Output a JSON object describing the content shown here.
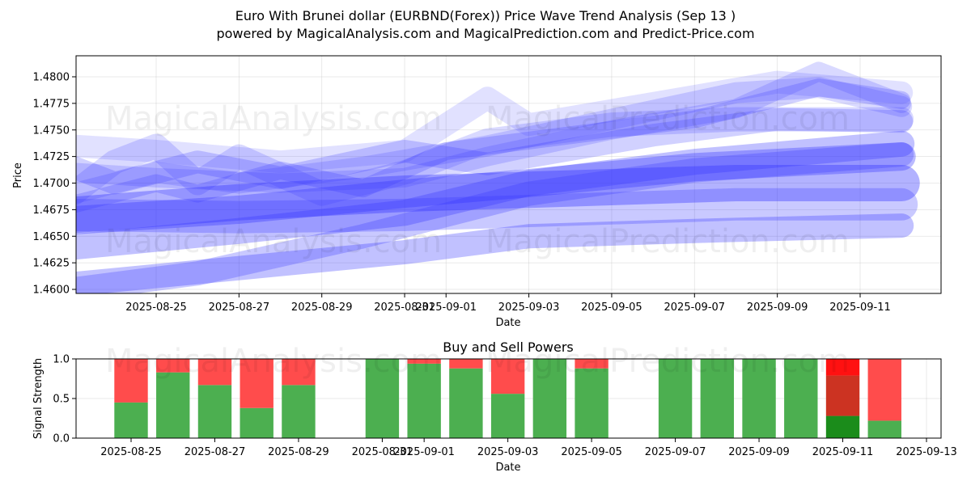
{
  "header": {
    "title_line1": "Euro With Brunei dollar (EURBND(Forex)) Price Wave Trend Analysis (Sep 13 )",
    "title_line2": "powered by MagicalAnalysis.com and MagicalPrediction.com and Predict-Price.com"
  },
  "watermarks": [
    "MagicalAnalysis.com",
    "MagicalPrediction.com"
  ],
  "colors": {
    "wave": "#3333ff",
    "buy": "#4caf50",
    "sell": "#ff4c4c",
    "buy_dark": "#1b8c1b",
    "sell_dark": "#cc3322",
    "sell_bright": "#ff1111"
  },
  "chart_data": [
    {
      "type": "area",
      "title": "",
      "xlabel": "Date",
      "ylabel": "Price",
      "ylim": [
        1.4597,
        1.482
      ],
      "xlim": [
        "2025-08-23",
        "2025-09-13"
      ],
      "x_ticks": [
        "2025-08-25",
        "2025-08-27",
        "2025-08-29",
        "2025-08-31",
        "2025-09-01",
        "2025-09-03",
        "2025-09-05",
        "2025-09-07",
        "2025-09-09",
        "2025-09-11"
      ],
      "y_ticks": [
        "1.4600",
        "1.4625",
        "1.4650",
        "1.4675",
        "1.4700",
        "1.4725",
        "1.4750",
        "1.4775",
        "1.4800"
      ],
      "grid": true,
      "series": [
        {
          "opacity": 0.4,
          "width": 30,
          "points": [
            [
              "2025-08-23",
              1.4605
            ],
            [
              "2025-08-27",
              1.462
            ],
            [
              "2025-08-31",
              1.4635
            ],
            [
              "2025-09-03",
              1.465
            ],
            [
              "2025-09-07",
              1.4655
            ],
            [
              "2025-09-12",
              1.466
            ]
          ]
        },
        {
          "opacity": 0.35,
          "width": 40,
          "points": [
            [
              "2025-08-23",
              1.467
            ],
            [
              "2025-08-27",
              1.4668
            ],
            [
              "2025-08-31",
              1.467
            ],
            [
              "2025-09-04",
              1.4675
            ],
            [
              "2025-09-08",
              1.468
            ],
            [
              "2025-09-12",
              1.468
            ]
          ]
        },
        {
          "opacity": 0.5,
          "width": 45,
          "points": [
            [
              "2025-08-23",
              1.467
            ],
            [
              "2025-08-27",
              1.4682
            ],
            [
              "2025-08-31",
              1.469
            ],
            [
              "2025-09-04",
              1.4695
            ],
            [
              "2025-09-08",
              1.47
            ],
            [
              "2025-09-12",
              1.47
            ]
          ]
        },
        {
          "opacity": 0.45,
          "width": 35,
          "points": [
            [
              "2025-08-23",
              1.4665
            ],
            [
              "2025-08-27",
              1.4675
            ],
            [
              "2025-08-31",
              1.469
            ],
            [
              "2025-09-03",
              1.47
            ],
            [
              "2025-09-07",
              1.4715
            ],
            [
              "2025-09-12",
              1.4725
            ]
          ]
        },
        {
          "opacity": 0.35,
          "width": 30,
          "points": [
            [
              "2025-08-23",
              1.46
            ],
            [
              "2025-08-26",
              1.4615
            ],
            [
              "2025-08-30",
              1.465
            ],
            [
              "2025-09-03",
              1.469
            ],
            [
              "2025-09-07",
              1.4712
            ],
            [
              "2025-09-12",
              1.4727
            ]
          ]
        },
        {
          "opacity": 0.4,
          "width": 32,
          "points": [
            [
              "2025-08-23",
              1.464
            ],
            [
              "2025-08-27",
              1.4655
            ],
            [
              "2025-08-31",
              1.4672
            ],
            [
              "2025-09-03",
              1.47
            ],
            [
              "2025-09-07",
              1.472
            ],
            [
              "2025-09-12",
              1.4737
            ]
          ]
        },
        {
          "opacity": 0.3,
          "width": 28,
          "points": [
            [
              "2025-08-23",
              1.4715
            ],
            [
              "2025-08-24",
              1.47
            ],
            [
              "2025-08-26",
              1.472
            ],
            [
              "2025-08-28",
              1.4705
            ],
            [
              "2025-08-31",
              1.473
            ],
            [
              "2025-09-02",
              1.4718
            ],
            [
              "2025-09-06",
              1.4745
            ],
            [
              "2025-09-09",
              1.476
            ],
            [
              "2025-09-12",
              1.4758
            ]
          ]
        },
        {
          "opacity": 0.25,
          "width": 30,
          "points": [
            [
              "2025-08-23",
              1.469
            ],
            [
              "2025-08-24",
              1.472
            ],
            [
              "2025-08-25",
              1.4735
            ],
            [
              "2025-08-26",
              1.47
            ],
            [
              "2025-08-27",
              1.4725
            ],
            [
              "2025-08-29",
              1.469
            ],
            [
              "2025-08-31",
              1.471
            ],
            [
              "2025-09-02",
              1.474
            ],
            [
              "2025-09-05",
              1.4755
            ],
            [
              "2025-09-08",
              1.476
            ],
            [
              "2025-09-12",
              1.476
            ]
          ]
        },
        {
          "opacity": 0.2,
          "width": 28,
          "points": [
            [
              "2025-08-23",
              1.4735
            ],
            [
              "2025-08-25",
              1.473
            ],
            [
              "2025-08-28",
              1.472
            ],
            [
              "2025-08-31",
              1.473
            ],
            [
              "2025-09-02",
              1.478
            ],
            [
              "2025-09-03",
              1.4755
            ],
            [
              "2025-09-06",
              1.4775
            ],
            [
              "2025-09-09",
              1.4795
            ],
            [
              "2025-09-12",
              1.4785
            ]
          ]
        },
        {
          "opacity": 0.25,
          "width": 24,
          "points": [
            [
              "2025-08-23",
              1.471
            ],
            [
              "2025-08-25",
              1.4705
            ],
            [
              "2025-08-28",
              1.47
            ],
            [
              "2025-08-31",
              1.4705
            ],
            [
              "2025-09-02",
              1.4725
            ],
            [
              "2025-09-05",
              1.475
            ],
            [
              "2025-09-08",
              1.477
            ],
            [
              "2025-09-10",
              1.4805
            ],
            [
              "2025-09-12",
              1.4775
            ]
          ]
        },
        {
          "opacity": 0.25,
          "width": 26,
          "points": [
            [
              "2025-08-23",
              1.469
            ],
            [
              "2025-08-25",
              1.471
            ],
            [
              "2025-08-27",
              1.47
            ],
            [
              "2025-08-30",
              1.4715
            ],
            [
              "2025-09-02",
              1.4735
            ],
            [
              "2025-09-05",
              1.476
            ],
            [
              "2025-09-08",
              1.4785
            ],
            [
              "2025-09-10",
              1.479
            ],
            [
              "2025-09-12",
              1.4772
            ]
          ]
        },
        {
          "opacity": 0.3,
          "width": 22,
          "points": [
            [
              "2025-08-23",
              1.468
            ],
            [
              "2025-08-25",
              1.47
            ],
            [
              "2025-08-26",
              1.469
            ],
            [
              "2025-08-28",
              1.4712
            ],
            [
              "2025-08-30",
              1.4695
            ],
            [
              "2025-09-01",
              1.473
            ],
            [
              "2025-09-04",
              1.4745
            ],
            [
              "2025-09-07",
              1.476
            ],
            [
              "2025-09-10",
              1.479
            ],
            [
              "2025-09-12",
              1.4778
            ]
          ]
        }
      ]
    },
    {
      "type": "bar",
      "title": "Buy and Sell Powers",
      "xlabel": "Date",
      "ylabel": "Signal Strength",
      "ylim": [
        0,
        1
      ],
      "xlim": [
        "2025-08-23",
        "2025-09-13"
      ],
      "x_ticks": [
        "2025-08-25",
        "2025-08-27",
        "2025-08-29",
        "2025-08-31",
        "2025-09-01",
        "2025-09-03",
        "2025-09-05",
        "2025-09-07",
        "2025-09-09",
        "2025-09-11",
        "2025-09-13"
      ],
      "y_ticks": [
        "0.0",
        "0.5",
        "1.0"
      ],
      "grid": true,
      "categories": [
        "2025-08-25",
        "2025-08-26",
        "2025-08-27",
        "2025-08-28",
        "2025-08-29",
        "2025-08-31",
        "2025-09-01",
        "2025-09-02",
        "2025-09-03",
        "2025-09-04",
        "2025-09-05",
        "2025-09-07",
        "2025-09-08",
        "2025-09-09",
        "2025-09-10",
        "2025-09-11",
        "2025-09-12"
      ],
      "series": [
        {
          "name": "Buy",
          "values": [
            0.45,
            0.83,
            0.67,
            0.38,
            0.67,
            1.0,
            0.94,
            0.88,
            0.56,
            1.0,
            0.88,
            1.0,
            1.0,
            1.0,
            1.0,
            0.28,
            0.22
          ]
        },
        {
          "name": "Sell",
          "values": [
            0.55,
            0.17,
            0.33,
            0.62,
            0.33,
            0.0,
            0.06,
            0.12,
            0.44,
            0.0,
            0.12,
            0.0,
            0.0,
            0.0,
            0.0,
            0.72,
            0.78
          ]
        }
      ],
      "overlay_2025_09_11": {
        "dark_red_from": 0.28,
        "dark_red_to": 0.79,
        "bright_red_from": 0.79,
        "bright_red_to": 1.0
      }
    }
  ]
}
